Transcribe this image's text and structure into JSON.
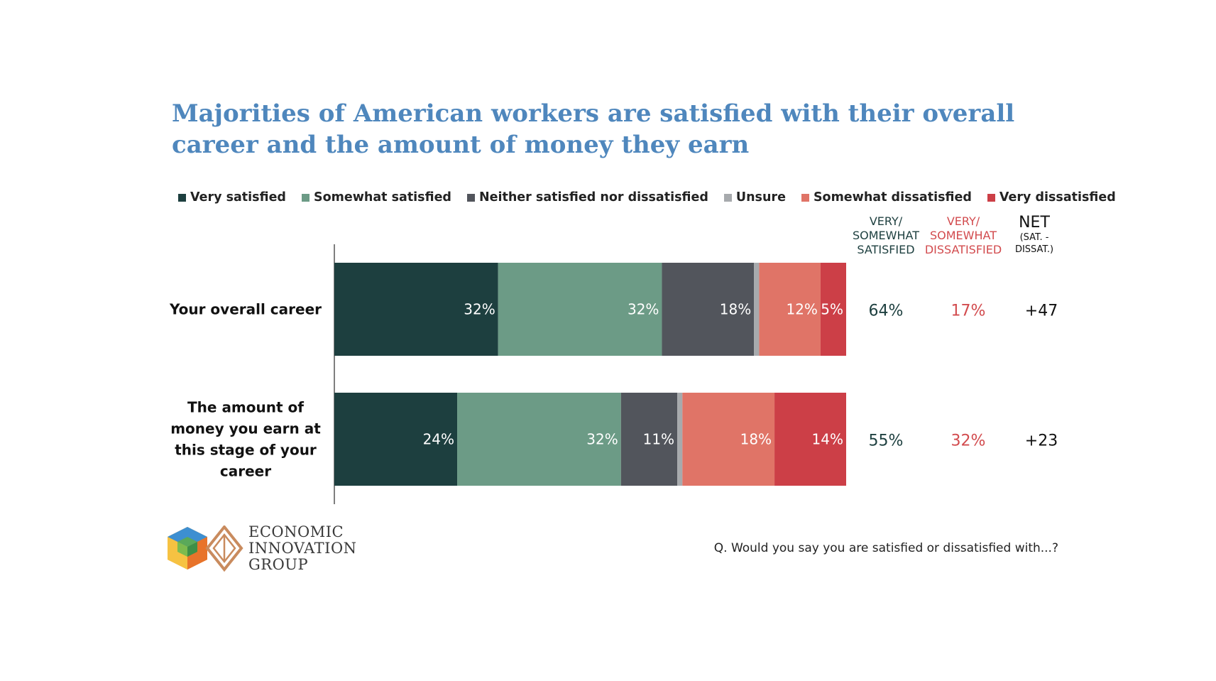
{
  "title": {
    "line1": "Majorities of American workers are satisfied with their overall",
    "line2": "career and the amount of money they earn"
  },
  "colors": {
    "title": "#4f87bd",
    "satisfied_text": "#1d3f3f",
    "dissatisfied_text": "#d24b4e"
  },
  "legend": [
    {
      "label": "Very satisfied",
      "color": "#1d3f3f"
    },
    {
      "label": "Somewhat satisfied",
      "color": "#6c9b86"
    },
    {
      "label": "Neither satisfied nor dissatisfied",
      "color": "#52555c"
    },
    {
      "label": "Unsure",
      "color": "#a7aaad"
    },
    {
      "label": "Somewhat dissatisfied",
      "color": "#e07467"
    },
    {
      "label": "Very dissatisfied",
      "color": "#cc3f47"
    }
  ],
  "columns": {
    "satisfied": {
      "line1": "VERY/",
      "line2": "SOMEWHAT",
      "line3": "SATISFIED"
    },
    "dissatisfied": {
      "line1": "VERY/",
      "line2": "SOMEWHAT",
      "line3": "DISSATISFIED"
    },
    "net": {
      "line1": "NET",
      "line2": "(SAT. -",
      "line3": "DISSAT.)"
    }
  },
  "chart_data": {
    "type": "bar",
    "orientation": "horizontal",
    "stacked": true,
    "categories": [
      [
        "Your overall career"
      ],
      [
        "The amount of",
        "money you earn at",
        "this stage of your",
        "career"
      ]
    ],
    "series": [
      {
        "name": "Very satisfied",
        "values": [
          32,
          24
        ],
        "labels": [
          "32%",
          "24%"
        ]
      },
      {
        "name": "Somewhat satisfied",
        "values": [
          32,
          32
        ],
        "labels": [
          "32%",
          "32%"
        ]
      },
      {
        "name": "Neither satisfied nor dissatisfied",
        "values": [
          18,
          11
        ],
        "labels": [
          "18%",
          "11%"
        ]
      },
      {
        "name": "Unsure",
        "values": [
          1,
          1
        ],
        "labels": [
          "",
          ""
        ]
      },
      {
        "name": "Somewhat dissatisfied",
        "values": [
          12,
          18
        ],
        "labels": [
          "12%",
          "18%"
        ]
      },
      {
        "name": "Very dissatisfied",
        "values": [
          5,
          14
        ],
        "labels": [
          "5%",
          "14%"
        ]
      }
    ],
    "satisfied_totals": [
      "64%",
      "55%"
    ],
    "dissatisfied_totals": [
      "17%",
      "32%"
    ],
    "net": [
      "+47",
      "+23"
    ],
    "xlim": [
      0,
      100
    ]
  },
  "footer": {
    "question": "Q. Would you say you are satisfied or dissatisfied with...?",
    "brand_line1": "ECONOMIC",
    "brand_line2": "INNOVATION",
    "brand_line3": "GROUP"
  }
}
